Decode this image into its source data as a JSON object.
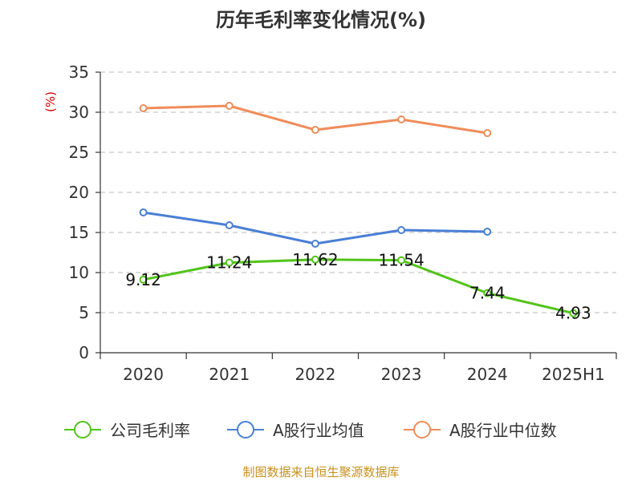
{
  "chart_data": {
    "type": "line",
    "title": "历年毛利率变化情况(%)",
    "unit_label": "(%)",
    "categories": [
      "2020",
      "2021",
      "2022",
      "2023",
      "2024",
      "2025H1"
    ],
    "ylim": [
      0,
      35
    ],
    "yticks": [
      0,
      5,
      10,
      15,
      20,
      25,
      30,
      35
    ],
    "grid": true,
    "legend_position": "bottom",
    "series": [
      {
        "name": "公司毛利率",
        "color": "#52c41a",
        "values": [
          9.12,
          11.24,
          11.62,
          11.54,
          7.44,
          4.93
        ],
        "labels": [
          "9.12",
          "11.24",
          "11.62",
          "11.54",
          "7.44",
          "4.93"
        ]
      },
      {
        "name": "A股行业均值",
        "color": "#4a7fd6",
        "values": [
          17.5,
          15.9,
          13.6,
          15.3,
          15.1,
          null
        ]
      },
      {
        "name": "A股行业中位数",
        "color": "#f08c5a",
        "values": [
          30.5,
          30.8,
          27.8,
          29.1,
          27.4,
          null
        ]
      }
    ]
  },
  "source": "制图数据来自恒生聚源数据库"
}
